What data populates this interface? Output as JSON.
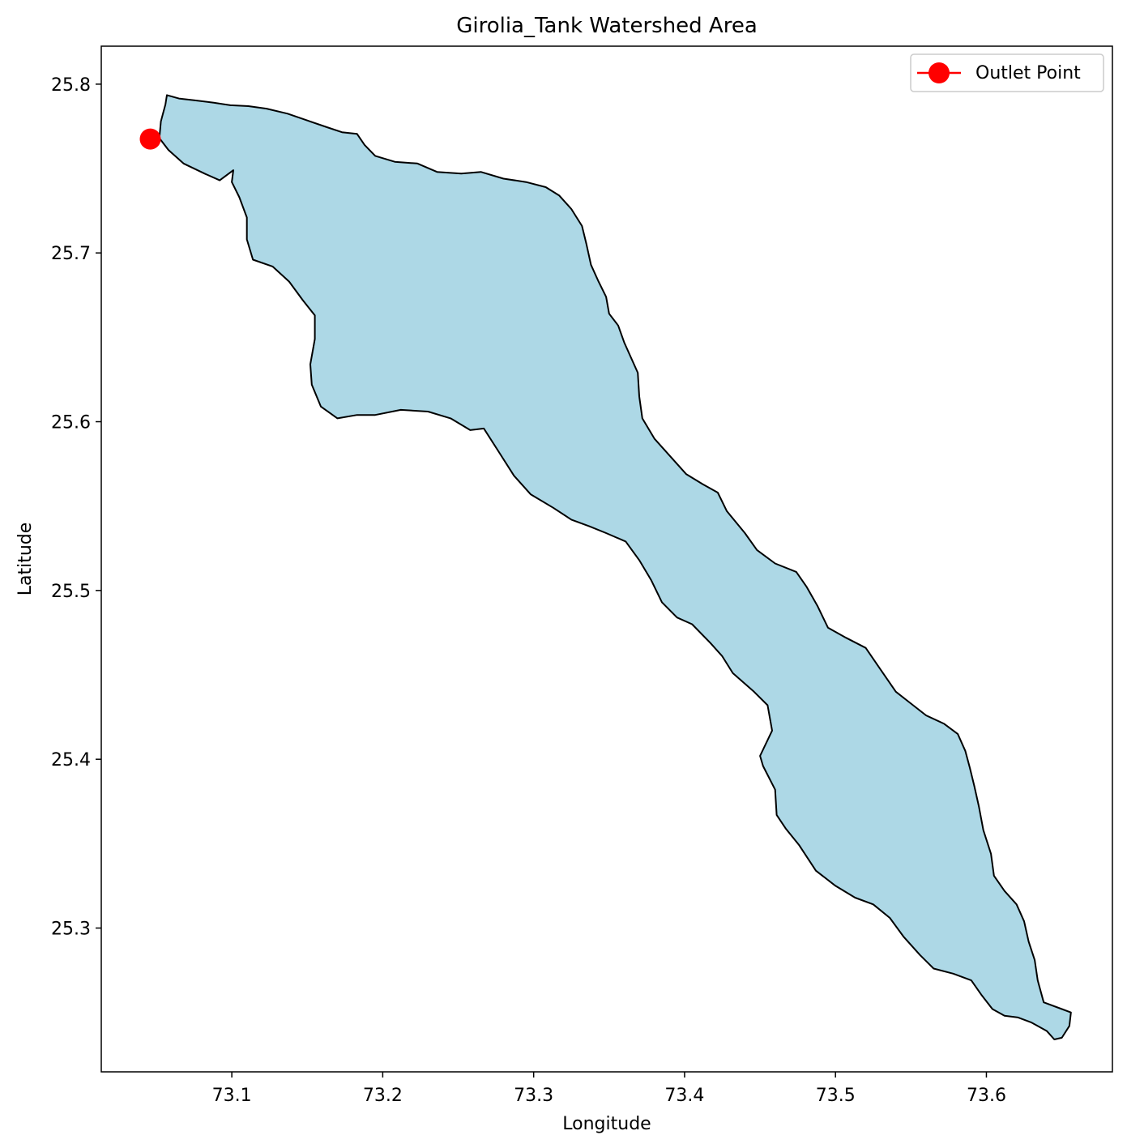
{
  "chart_data": {
    "type": "map",
    "title": "Girolia_Tank Watershed Area",
    "xlabel": "Longitude",
    "ylabel": "Latitude",
    "xlim": [
      73.0135,
      73.6835
    ],
    "ylim": [
      25.2148,
      25.8225
    ],
    "x_ticks": [
      73.1,
      73.2,
      73.3,
      73.4,
      73.5,
      73.6
    ],
    "y_ticks": [
      25.3,
      25.4,
      25.5,
      25.6,
      25.7,
      25.8
    ],
    "grid": false,
    "legend": {
      "position": "top-right",
      "entries": [
        "Outlet Point"
      ]
    },
    "colors": {
      "watershed_fill": "#add8e6",
      "watershed_edge": "#000000",
      "outlet": "#ff0000"
    },
    "watershed_boundary": [
      [
        73.057,
        25.7935
      ],
      [
        73.065,
        25.7915
      ],
      [
        73.075,
        25.7905
      ],
      [
        73.088,
        25.789
      ],
      [
        73.099,
        25.7875
      ],
      [
        73.111,
        25.787
      ],
      [
        73.123,
        25.7855
      ],
      [
        73.137,
        25.7825
      ],
      [
        73.15,
        25.7785
      ],
      [
        73.163,
        25.7745
      ],
      [
        73.173,
        25.7715
      ],
      [
        73.183,
        25.7705
      ],
      [
        73.188,
        25.764
      ],
      [
        73.195,
        25.7575
      ],
      [
        73.208,
        25.754
      ],
      [
        73.223,
        25.753
      ],
      [
        73.236,
        25.748
      ],
      [
        73.252,
        25.747
      ],
      [
        73.265,
        25.748
      ],
      [
        73.28,
        25.744
      ],
      [
        73.295,
        25.742
      ],
      [
        73.308,
        25.739
      ],
      [
        73.317,
        25.734
      ],
      [
        73.325,
        25.726
      ],
      [
        73.332,
        25.716
      ],
      [
        73.335,
        25.705
      ],
      [
        73.338,
        25.693
      ],
      [
        73.343,
        25.683
      ],
      [
        73.348,
        25.674
      ],
      [
        73.35,
        25.664
      ],
      [
        73.356,
        25.657
      ],
      [
        73.36,
        25.647
      ],
      [
        73.365,
        25.637
      ],
      [
        73.369,
        25.629
      ],
      [
        73.37,
        25.615
      ],
      [
        73.372,
        25.602
      ],
      [
        73.38,
        25.59
      ],
      [
        73.39,
        25.58
      ],
      [
        73.401,
        25.569
      ],
      [
        73.412,
        25.563
      ],
      [
        73.422,
        25.558
      ],
      [
        73.428,
        25.547
      ],
      [
        73.44,
        25.534
      ],
      [
        73.448,
        25.524
      ],
      [
        73.46,
        25.516
      ],
      [
        73.474,
        25.511
      ],
      [
        73.481,
        25.502
      ],
      [
        73.488,
        25.491
      ],
      [
        73.495,
        25.478
      ],
      [
        73.507,
        25.472
      ],
      [
        73.52,
        25.466
      ],
      [
        73.53,
        25.453
      ],
      [
        73.54,
        25.44
      ],
      [
        73.55,
        25.433
      ],
      [
        73.56,
        25.426
      ],
      [
        73.572,
        25.421
      ],
      [
        73.581,
        25.415
      ],
      [
        73.586,
        25.405
      ],
      [
        73.589,
        25.395
      ],
      [
        73.592,
        25.384
      ],
      [
        73.595,
        25.372
      ],
      [
        73.598,
        25.358
      ],
      [
        73.603,
        25.344
      ],
      [
        73.605,
        25.331
      ],
      [
        73.612,
        25.322
      ],
      [
        73.62,
        25.314
      ],
      [
        73.625,
        25.304
      ],
      [
        73.628,
        25.292
      ],
      [
        73.632,
        25.281
      ],
      [
        73.634,
        25.269
      ],
      [
        73.638,
        25.256
      ],
      [
        73.65,
        25.252
      ],
      [
        73.656,
        25.25
      ],
      [
        73.655,
        25.242
      ],
      [
        73.65,
        25.235
      ],
      [
        73.645,
        25.234
      ],
      [
        73.64,
        25.239
      ],
      [
        73.63,
        25.244
      ],
      [
        73.621,
        25.247
      ],
      [
        73.612,
        25.248
      ],
      [
        73.604,
        25.252
      ],
      [
        73.597,
        25.26
      ],
      [
        73.59,
        25.269
      ],
      [
        73.578,
        25.273
      ],
      [
        73.565,
        25.276
      ],
      [
        73.556,
        25.284
      ],
      [
        73.545,
        25.295
      ],
      [
        73.536,
        25.306
      ],
      [
        73.525,
        25.314
      ],
      [
        73.513,
        25.318
      ],
      [
        73.5,
        25.325
      ],
      [
        73.487,
        25.334
      ],
      [
        73.476,
        25.349
      ],
      [
        73.467,
        25.359
      ],
      [
        73.461,
        25.367
      ],
      [
        73.46,
        25.382
      ],
      [
        73.452,
        25.396
      ],
      [
        73.45,
        25.402
      ],
      [
        73.458,
        25.417
      ],
      [
        73.455,
        25.432
      ],
      [
        73.446,
        25.44
      ],
      [
        73.432,
        25.451
      ],
      [
        73.425,
        25.461
      ],
      [
        73.417,
        25.469
      ],
      [
        73.405,
        25.48
      ],
      [
        73.395,
        25.484
      ],
      [
        73.385,
        25.493
      ],
      [
        73.378,
        25.506
      ],
      [
        73.37,
        25.518
      ],
      [
        73.361,
        25.529
      ],
      [
        73.348,
        25.534
      ],
      [
        73.337,
        25.538
      ],
      [
        73.325,
        25.542
      ],
      [
        73.313,
        25.549
      ],
      [
        73.298,
        25.557
      ],
      [
        73.287,
        25.568
      ],
      [
        73.277,
        25.582
      ],
      [
        73.267,
        25.596
      ],
      [
        73.258,
        25.595
      ],
      [
        73.245,
        25.602
      ],
      [
        73.23,
        25.606
      ],
      [
        73.212,
        25.607
      ],
      [
        73.195,
        25.604
      ],
      [
        73.183,
        25.604
      ],
      [
        73.17,
        25.602
      ],
      [
        73.159,
        25.609
      ],
      [
        73.153,
        25.622
      ],
      [
        73.152,
        25.634
      ],
      [
        73.155,
        25.649
      ],
      [
        73.155,
        25.663
      ],
      [
        73.147,
        25.672
      ],
      [
        73.138,
        25.683
      ],
      [
        73.127,
        25.692
      ],
      [
        73.114,
        25.696
      ],
      [
        73.11,
        25.708
      ],
      [
        73.11,
        25.721
      ],
      [
        73.105,
        25.733
      ],
      [
        73.1,
        25.742
      ],
      [
        73.101,
        25.749
      ],
      [
        73.092,
        25.743
      ],
      [
        73.082,
        25.747
      ],
      [
        73.068,
        25.753
      ],
      [
        73.058,
        25.761
      ],
      [
        73.052,
        25.768
      ],
      [
        73.053,
        25.778
      ],
      [
        73.056,
        25.788
      ],
      [
        73.057,
        25.7935
      ]
    ],
    "points": [
      {
        "name": "Outlet Point",
        "x": 73.046,
        "y": 25.7675
      }
    ]
  }
}
